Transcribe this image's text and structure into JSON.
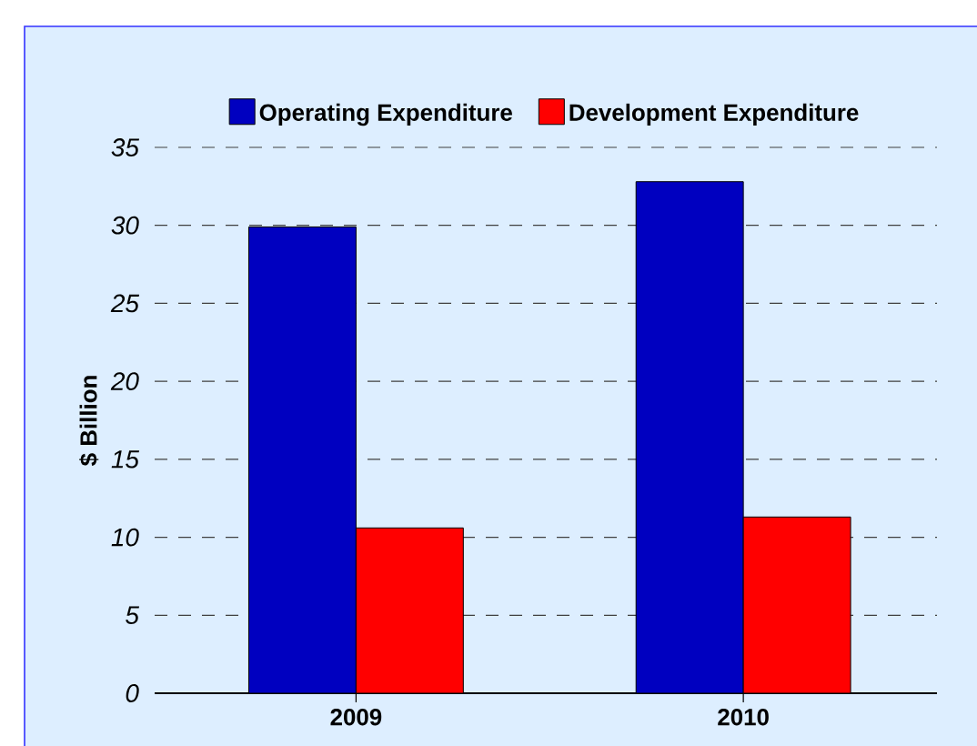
{
  "chart_data": {
    "type": "bar",
    "categories": [
      "2009",
      "2010"
    ],
    "series": [
      {
        "name": "Operating Expenditure",
        "color": "#0000c0",
        "values": [
          29.9,
          32.8
        ]
      },
      {
        "name": "Development Expenditure",
        "color": "#ff0000",
        "values": [
          10.6,
          11.3
        ]
      }
    ],
    "ylabel": "$ Billion",
    "ylim": [
      0,
      35
    ],
    "yticks": [
      0,
      5,
      10,
      15,
      20,
      25,
      30,
      35
    ],
    "grid": "y",
    "legend": "top"
  }
}
